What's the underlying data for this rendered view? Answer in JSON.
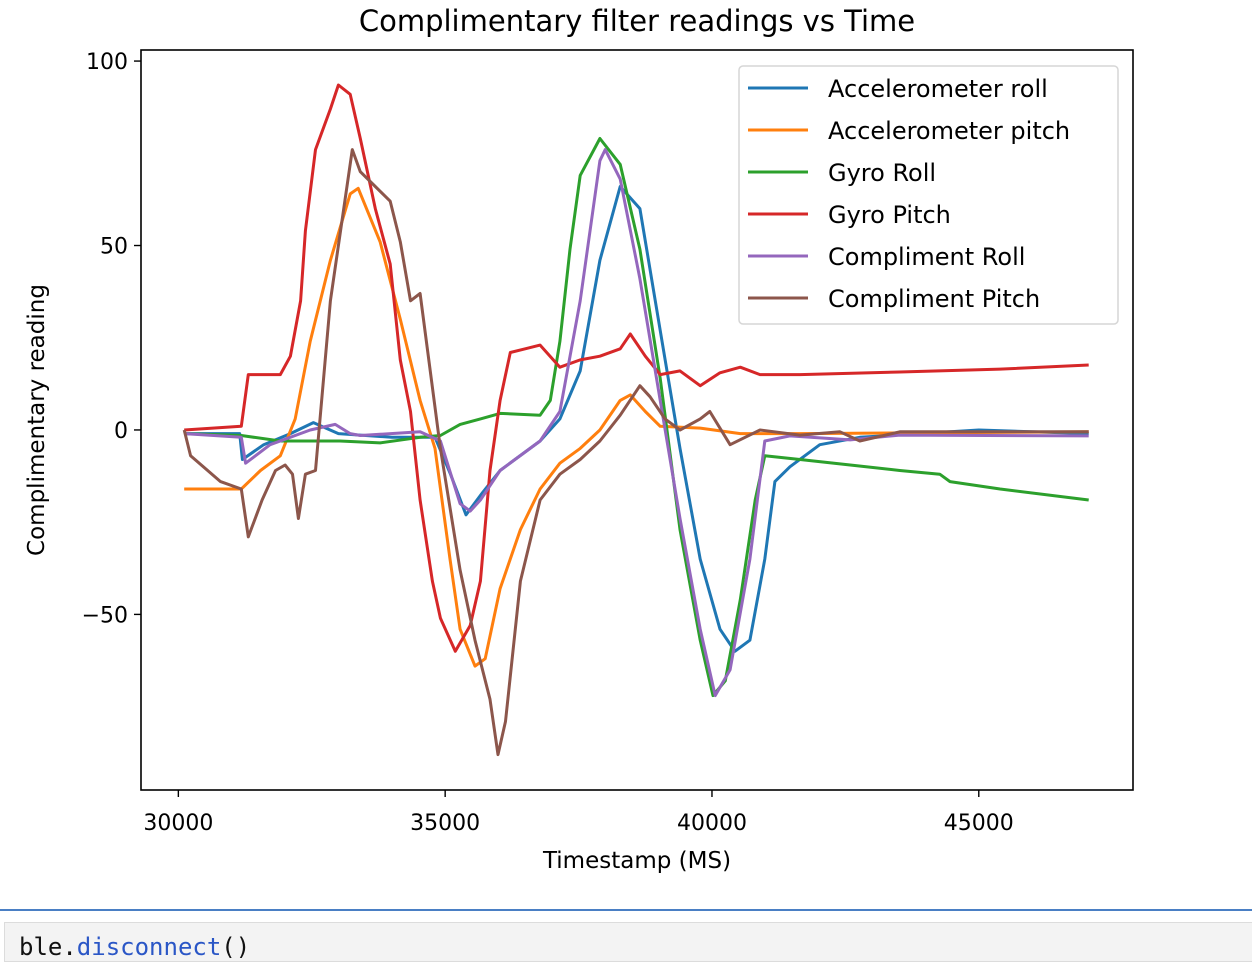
{
  "chart_data": {
    "type": "line",
    "title": "Complimentary filter readings vs Time",
    "xlabel": "Timestamp (MS)",
    "ylabel": "Complimentary reading",
    "xlim": [
      29300,
      47890
    ],
    "ylim": [
      -97.6,
      103
    ],
    "xticks": [
      30000,
      35000,
      40000,
      45000
    ],
    "yticks": [
      -50,
      0,
      50,
      100
    ],
    "xtick_labels": [
      "30000",
      "35000",
      "40000",
      "45000"
    ],
    "ytick_labels": [
      "−50",
      "0",
      "50",
      "100"
    ],
    "grid": false,
    "legend_position": "upper-right",
    "series": [
      {
        "name": "Accelerometer roll",
        "color": "#1f77b4",
        "points": [
          [
            30110,
            -1
          ],
          [
            31150,
            -1
          ],
          [
            31200,
            -8
          ],
          [
            31600,
            -4
          ],
          [
            32100,
            -1
          ],
          [
            32530,
            2
          ],
          [
            33000,
            -1
          ],
          [
            34000,
            -2
          ],
          [
            34810,
            -2
          ],
          [
            35100,
            -12
          ],
          [
            35390,
            -23
          ],
          [
            35700,
            -17
          ],
          [
            36030,
            -11
          ],
          [
            36780,
            -3
          ],
          [
            37150,
            3
          ],
          [
            37530,
            16
          ],
          [
            37900,
            46
          ],
          [
            38280,
            66
          ],
          [
            38650,
            60
          ],
          [
            39030,
            27
          ],
          [
            39400,
            -5
          ],
          [
            39780,
            -35
          ],
          [
            40150,
            -54
          ],
          [
            40430,
            -60
          ],
          [
            40710,
            -57
          ],
          [
            40990,
            -35
          ],
          [
            41180,
            -14
          ],
          [
            41460,
            -10
          ],
          [
            42020,
            -4
          ],
          [
            42770,
            -2
          ],
          [
            43900,
            -1
          ],
          [
            45000,
            0
          ],
          [
            47060,
            -1
          ]
        ]
      },
      {
        "name": "Accelerometer pitch",
        "color": "#ff7f0e",
        "points": [
          [
            30110,
            -16
          ],
          [
            31180,
            -16
          ],
          [
            31540,
            -11
          ],
          [
            31910,
            -7
          ],
          [
            32190,
            3
          ],
          [
            32470,
            24
          ],
          [
            32850,
            46
          ],
          [
            33220,
            64
          ],
          [
            33370,
            65.5
          ],
          [
            33780,
            51
          ],
          [
            34160,
            30
          ],
          [
            34530,
            8
          ],
          [
            34810,
            -5
          ],
          [
            35090,
            -35
          ],
          [
            35280,
            -54
          ],
          [
            35560,
            -64
          ],
          [
            35750,
            -62
          ],
          [
            36030,
            -43
          ],
          [
            36410,
            -27
          ],
          [
            36780,
            -16
          ],
          [
            37150,
            -9
          ],
          [
            37530,
            -5
          ],
          [
            37900,
            0
          ],
          [
            38280,
            8
          ],
          [
            38470,
            9.5
          ],
          [
            38750,
            5
          ],
          [
            39030,
            1
          ],
          [
            39780,
            0.5
          ],
          [
            40530,
            -1
          ],
          [
            41650,
            -1
          ],
          [
            47060,
            -0.5
          ]
        ]
      },
      {
        "name": "Gyro Roll",
        "color": "#2ca02c",
        "points": [
          [
            30110,
            -1
          ],
          [
            31180,
            -1.5
          ],
          [
            31910,
            -3
          ],
          [
            32280,
            -3
          ],
          [
            33030,
            -3
          ],
          [
            33780,
            -3.5
          ],
          [
            34530,
            -2
          ],
          [
            34910,
            -1.5
          ],
          [
            35280,
            1.5
          ],
          [
            35660,
            3
          ],
          [
            36030,
            4.5
          ],
          [
            36780,
            4
          ],
          [
            36970,
            8
          ],
          [
            37150,
            24
          ],
          [
            37340,
            49
          ],
          [
            37530,
            69
          ],
          [
            37900,
            79
          ],
          [
            38280,
            72
          ],
          [
            38650,
            49
          ],
          [
            39030,
            14
          ],
          [
            39400,
            -27
          ],
          [
            39780,
            -57
          ],
          [
            40020,
            -72
          ],
          [
            40250,
            -68
          ],
          [
            40530,
            -46
          ],
          [
            40810,
            -19
          ],
          [
            40990,
            -7
          ],
          [
            41650,
            -8
          ],
          [
            42590,
            -9.5
          ],
          [
            43520,
            -11
          ],
          [
            44270,
            -12
          ],
          [
            44460,
            -14
          ],
          [
            45400,
            -16
          ],
          [
            47060,
            -19
          ]
        ]
      },
      {
        "name": "Gyro Pitch",
        "color": "#d62728",
        "points": [
          [
            30110,
            0
          ],
          [
            31180,
            1
          ],
          [
            31310,
            15
          ],
          [
            31910,
            15
          ],
          [
            32100,
            20
          ],
          [
            32290,
            35
          ],
          [
            32380,
            54
          ],
          [
            32570,
            76
          ],
          [
            32850,
            87
          ],
          [
            33000,
            93.5
          ],
          [
            33220,
            91
          ],
          [
            33410,
            79
          ],
          [
            33690,
            60
          ],
          [
            33970,
            45
          ],
          [
            34160,
            19
          ],
          [
            34350,
            5
          ],
          [
            34530,
            -19
          ],
          [
            34760,
            -41
          ],
          [
            34910,
            -51
          ],
          [
            35190,
            -60
          ],
          [
            35470,
            -53
          ],
          [
            35660,
            -41
          ],
          [
            35840,
            -11
          ],
          [
            36030,
            8
          ],
          [
            36220,
            21
          ],
          [
            36500,
            22
          ],
          [
            36780,
            23
          ],
          [
            37150,
            17
          ],
          [
            37530,
            19
          ],
          [
            37900,
            20
          ],
          [
            38280,
            22
          ],
          [
            38470,
            26
          ],
          [
            38750,
            20
          ],
          [
            39030,
            15
          ],
          [
            39400,
            16
          ],
          [
            39780,
            12
          ],
          [
            40150,
            15.5
          ],
          [
            40530,
            17
          ],
          [
            40900,
            15
          ],
          [
            41650,
            15
          ],
          [
            43520,
            15.7
          ],
          [
            45400,
            16.5
          ],
          [
            47060,
            17.6
          ]
        ]
      },
      {
        "name": "Compliment Roll",
        "color": "#9467bd",
        "points": [
          [
            30110,
            -1
          ],
          [
            31180,
            -2
          ],
          [
            31260,
            -9
          ],
          [
            31720,
            -4
          ],
          [
            32470,
            0
          ],
          [
            32940,
            1.5
          ],
          [
            33220,
            -1
          ],
          [
            33410,
            -1.5
          ],
          [
            34530,
            -0.5
          ],
          [
            34910,
            -3
          ],
          [
            35280,
            -20
          ],
          [
            35470,
            -22
          ],
          [
            35660,
            -19
          ],
          [
            36030,
            -11
          ],
          [
            36780,
            -3
          ],
          [
            37150,
            5
          ],
          [
            37530,
            35
          ],
          [
            37900,
            73
          ],
          [
            38000,
            76
          ],
          [
            38280,
            68
          ],
          [
            38650,
            41
          ],
          [
            39030,
            8
          ],
          [
            39400,
            -24
          ],
          [
            39780,
            -54
          ],
          [
            40060,
            -72
          ],
          [
            40340,
            -65
          ],
          [
            40710,
            -35
          ],
          [
            40990,
            -3
          ],
          [
            41460,
            -1.6
          ],
          [
            42590,
            -2.7
          ],
          [
            43520,
            -1.4
          ],
          [
            47060,
            -1.6
          ]
        ]
      },
      {
        "name": "Compliment Pitch",
        "color": "#8c564b",
        "points": [
          [
            30110,
            0
          ],
          [
            30230,
            -7
          ],
          [
            30790,
            -14
          ],
          [
            31180,
            -16
          ],
          [
            31310,
            -29
          ],
          [
            31570,
            -19
          ],
          [
            31820,
            -11
          ],
          [
            32000,
            -9.5
          ],
          [
            32140,
            -12
          ],
          [
            32250,
            -24
          ],
          [
            32380,
            -12
          ],
          [
            32570,
            -11
          ],
          [
            32850,
            35
          ],
          [
            33260,
            76
          ],
          [
            33410,
            70
          ],
          [
            33690,
            66
          ],
          [
            33970,
            62
          ],
          [
            34160,
            51
          ],
          [
            34350,
            35
          ],
          [
            34530,
            37
          ],
          [
            34910,
            -5
          ],
          [
            35280,
            -38
          ],
          [
            35560,
            -57
          ],
          [
            35840,
            -73
          ],
          [
            35990,
            -88
          ],
          [
            36130,
            -79
          ],
          [
            36410,
            -41
          ],
          [
            36780,
            -19
          ],
          [
            37150,
            -12
          ],
          [
            37530,
            -8
          ],
          [
            37900,
            -3
          ],
          [
            38280,
            4
          ],
          [
            38650,
            12
          ],
          [
            38840,
            9
          ],
          [
            39120,
            3
          ],
          [
            39400,
            0
          ],
          [
            39780,
            3
          ],
          [
            39960,
            5
          ],
          [
            40340,
            -4
          ],
          [
            40900,
            0
          ],
          [
            41650,
            -1.4
          ],
          [
            42400,
            -0.5
          ],
          [
            42770,
            -3
          ],
          [
            43520,
            -0.5
          ],
          [
            45400,
            -0.5
          ],
          [
            47060,
            -0.5
          ]
        ]
      }
    ]
  },
  "notebook": {
    "next_cell_code_obj": "ble.",
    "next_cell_code_fn": "disconnect",
    "next_cell_code_rest": "()"
  }
}
